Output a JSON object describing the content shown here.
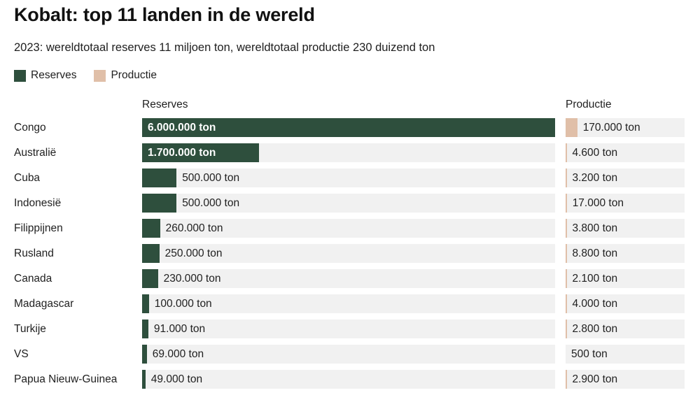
{
  "page": {
    "title": "Kobalt: top 11 landen in de wereld",
    "subtitle": "2023: wereldtotaal reserves 11 miljoen ton, wereldtotaal productie 230 duizend ton"
  },
  "legend": {
    "items": [
      {
        "label": "Reserves",
        "color": "#2e4f3d"
      },
      {
        "label": "Productie",
        "color": "#e0bfa8"
      }
    ]
  },
  "columns": {
    "reserves_header": "Reserves",
    "productie_header": "Productie"
  },
  "chart_data": {
    "type": "bar",
    "orientation": "horizontal",
    "title": "Kobalt: top 11 landen in de wereld",
    "subtitle": "2023: wereldtotaal reserves 11 miljoen ton, wereldtotaal productie 230 duizend ton",
    "unit": "ton",
    "axis_max_ton": 6000000,
    "grid": false,
    "legend_position": "top-left",
    "categories": [
      "Congo",
      "Australië",
      "Cuba",
      "Indonesië",
      "Filippijnen",
      "Rusland",
      "Canada",
      "Madagascar",
      "Turkije",
      "VS",
      "Papua Nieuw-Guinea"
    ],
    "series": [
      {
        "name": "Reserves",
        "color": "#2e4f3d",
        "values": [
          6000000,
          1700000,
          500000,
          500000,
          260000,
          250000,
          230000,
          100000,
          91000,
          69000,
          49000
        ],
        "labels": [
          "6.000.000 ton",
          "1.700.000 ton",
          "500.000 ton",
          "500.000 ton",
          "260.000 ton",
          "250.000 ton",
          "230.000 ton",
          "100.000 ton",
          "91.000 ton",
          "69.000 ton",
          "49.000 ton"
        ]
      },
      {
        "name": "Productie",
        "color": "#e0bfa8",
        "values": [
          170000,
          4600,
          3200,
          17000,
          3800,
          8800,
          2100,
          4000,
          2800,
          500,
          2900
        ],
        "labels": [
          "170.000 ton",
          "4.600 ton",
          "3.200 ton",
          "17.000 ton",
          "3.800 ton",
          "8.800 ton",
          "2.100 ton",
          "4.000 ton",
          "2.800 ton",
          "500 ton",
          "2.900 ton"
        ]
      }
    ],
    "track_color": "#f1f1f1"
  }
}
